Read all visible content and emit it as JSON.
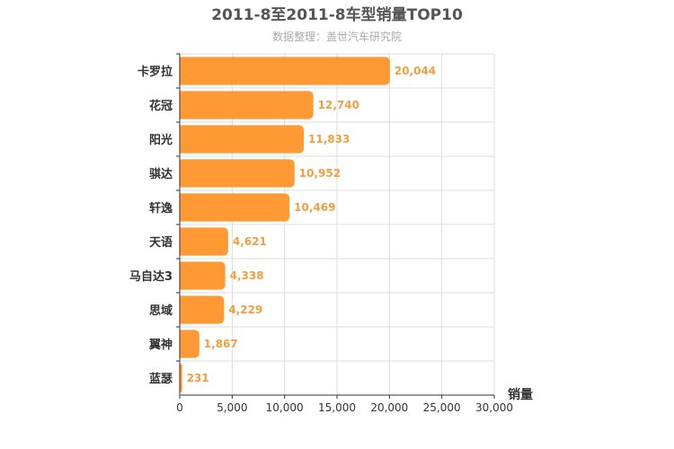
{
  "chart_data": {
    "type": "bar",
    "orientation": "horizontal",
    "title": "2011-8至2011-8车型销量TOP10",
    "subtitle": "数据整理：盖世汽车研究院",
    "xlabel": "销量",
    "ylabel": "",
    "categories": [
      "卡罗拉",
      "花冠",
      "阳光",
      "骐达",
      "轩逸",
      "天语",
      "马自达3",
      "思域",
      "翼神",
      "蓝瑟"
    ],
    "values": [
      20044,
      12740,
      11833,
      10952,
      10469,
      4621,
      4338,
      4229,
      1867,
      231
    ],
    "value_labels": [
      "20,044",
      "12,740",
      "11,833",
      "10,952",
      "10,469",
      "4,621",
      "4,338",
      "4,229",
      "1,867",
      "231"
    ],
    "xlim": [
      0,
      30000
    ],
    "x_ticks": [
      0,
      5000,
      10000,
      15000,
      20000,
      25000,
      30000
    ],
    "x_tick_labels": [
      "0",
      "5,000",
      "10,000",
      "15,000",
      "20,000",
      "25,000",
      "30,000"
    ],
    "grid": true,
    "bar_color": "#ff9933",
    "label_color": "#f0a040"
  }
}
